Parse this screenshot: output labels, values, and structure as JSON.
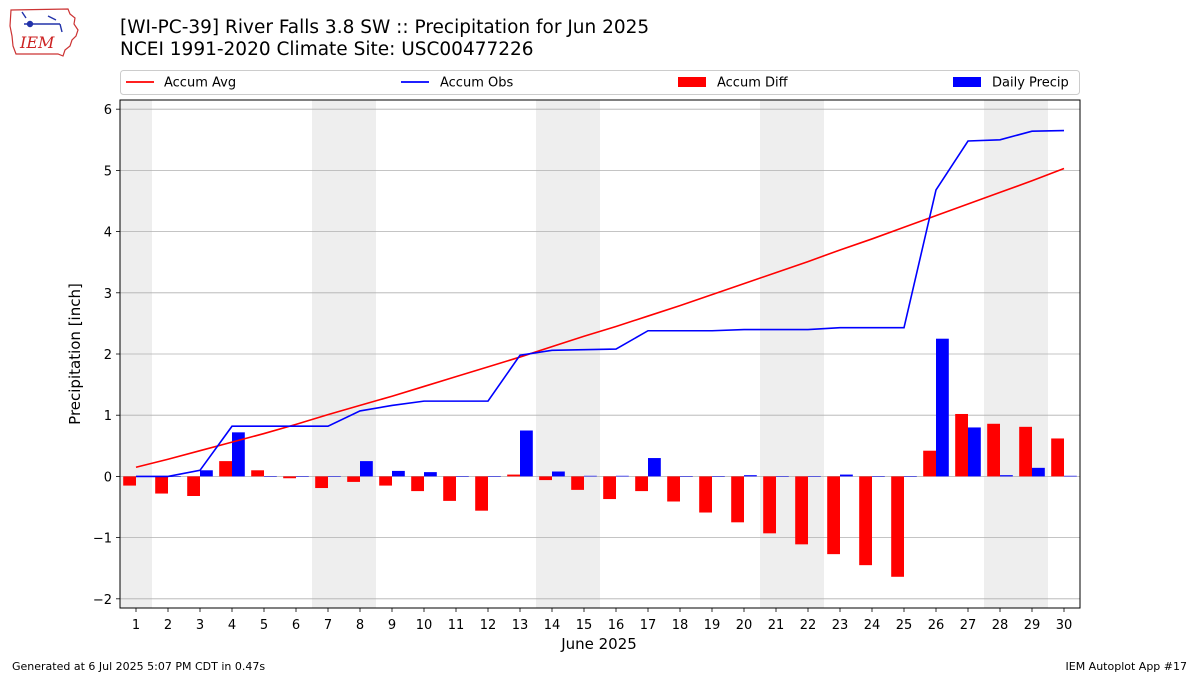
{
  "header": {
    "title_line1": "[WI-PC-39] River Falls 3.8 SW :: Precipitation for Jun 2025",
    "title_line2": "NCEI 1991-2020 Climate Site: USC00477226",
    "logo_text": "IEM"
  },
  "footer": {
    "left": "Generated at 6 Jul 2025 5:07 PM CDT in 0.47s",
    "right": "IEM Autoplot App #17"
  },
  "colors": {
    "avg": "#ff0000",
    "obs": "#0000ff",
    "diff": "#ff0000",
    "daily": "#0000ff",
    "weekend": "#eeeeee",
    "grid": "#b0b0b0"
  },
  "chart_data": {
    "type": "bar",
    "xlabel": "June 2025",
    "ylabel": "Precipitation [inch]",
    "xlim": [
      0.5,
      30.5
    ],
    "ylim": [
      -2.15,
      6.15
    ],
    "yticks": [
      -2,
      -1,
      0,
      1,
      2,
      3,
      4,
      5,
      6
    ],
    "ytick_labels": [
      "−2",
      "−1",
      "0",
      "1",
      "2",
      "3",
      "4",
      "5",
      "6"
    ],
    "grid": true,
    "legend_placement": "top",
    "x": [
      1,
      2,
      3,
      4,
      5,
      6,
      7,
      8,
      9,
      10,
      11,
      12,
      13,
      14,
      15,
      16,
      17,
      18,
      19,
      20,
      21,
      22,
      23,
      24,
      25,
      26,
      27,
      28,
      29,
      30
    ],
    "weekend_spans": [
      [
        0.5,
        1.5
      ],
      [
        6.5,
        8.5
      ],
      [
        13.5,
        15.5
      ],
      [
        20.5,
        22.5
      ],
      [
        27.5,
        29.5
      ]
    ],
    "series": [
      {
        "name": "Accum Avg",
        "kind": "line",
        "values": [
          0.15,
          0.28,
          0.42,
          0.56,
          0.7,
          0.85,
          1.01,
          1.16,
          1.31,
          1.47,
          1.63,
          1.79,
          1.95,
          2.12,
          2.29,
          2.45,
          2.62,
          2.79,
          2.97,
          3.15,
          3.33,
          3.51,
          3.7,
          3.88,
          4.07,
          4.26,
          4.45,
          4.64,
          4.83,
          5.03
        ]
      },
      {
        "name": "Accum Obs",
        "kind": "line",
        "values": [
          0.0,
          0.0,
          0.1,
          0.82,
          0.82,
          0.82,
          0.82,
          1.07,
          1.16,
          1.23,
          1.23,
          1.23,
          1.98,
          2.06,
          2.07,
          2.08,
          2.38,
          2.38,
          2.38,
          2.4,
          2.4,
          2.4,
          2.43,
          2.43,
          2.43,
          4.68,
          5.48,
          5.5,
          5.64,
          5.65
        ]
      },
      {
        "name": "Accum Diff",
        "kind": "bar",
        "values": [
          -0.15,
          -0.28,
          -0.32,
          0.25,
          0.1,
          -0.03,
          -0.19,
          -0.09,
          -0.15,
          -0.24,
          -0.4,
          -0.56,
          0.03,
          -0.06,
          -0.22,
          -0.37,
          -0.24,
          -0.41,
          -0.59,
          -0.75,
          -0.93,
          -1.11,
          -1.27,
          -1.45,
          -1.64,
          0.42,
          1.02,
          0.86,
          0.81,
          0.62
        ]
      },
      {
        "name": "Daily Precip",
        "kind": "bar",
        "values": [
          0.0,
          0.0,
          0.1,
          0.72,
          0.0,
          0.0,
          0.0,
          0.25,
          0.09,
          0.07,
          0.0,
          0.0,
          0.75,
          0.08,
          0.01,
          0.01,
          0.3,
          0.0,
          0.0,
          0.02,
          0.0,
          0.0,
          0.03,
          0.0,
          0.0,
          2.25,
          0.8,
          0.02,
          0.14,
          0.01
        ]
      }
    ]
  }
}
